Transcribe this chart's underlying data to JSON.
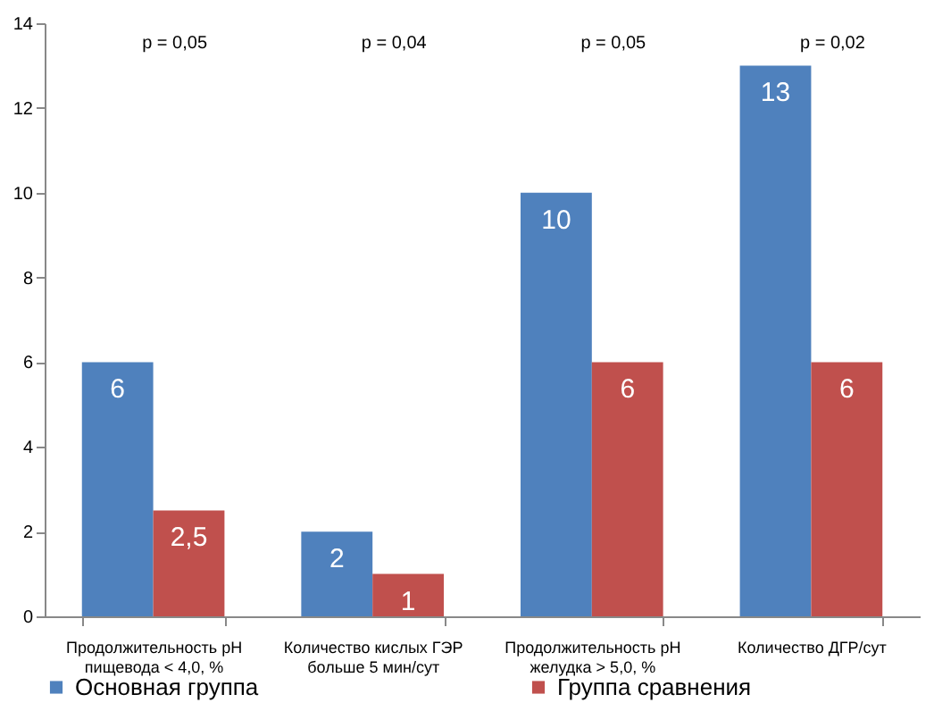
{
  "chart_data": {
    "type": "bar",
    "categories": [
      "Продолжительность pH пищевода < 4,0, %",
      "Количество кислых ГЭР больше 5 мин/сут",
      "Продолжительность pH желудка > 5,0, %",
      "Количество ДГР/сут"
    ],
    "series": [
      {
        "name": "Основная группа",
        "color": "#4f81bd",
        "values": [
          6,
          2,
          10,
          13
        ],
        "value_labels": [
          "6",
          "2",
          "10",
          "13"
        ]
      },
      {
        "name": "Группа сравнения",
        "color": "#c0504d",
        "values": [
          2.5,
          1,
          6,
          6
        ],
        "value_labels": [
          "2,5",
          "1",
          "6",
          "6"
        ]
      }
    ],
    "ylim": [
      0,
      14
    ],
    "yticks": [
      0,
      2,
      4,
      6,
      8,
      10,
      12,
      14
    ],
    "grid": false,
    "legend": "bottom",
    "annotations": [
      "p = 0,05",
      "p = 0,04",
      "p = 0,05",
      "p = 0,02"
    ]
  }
}
